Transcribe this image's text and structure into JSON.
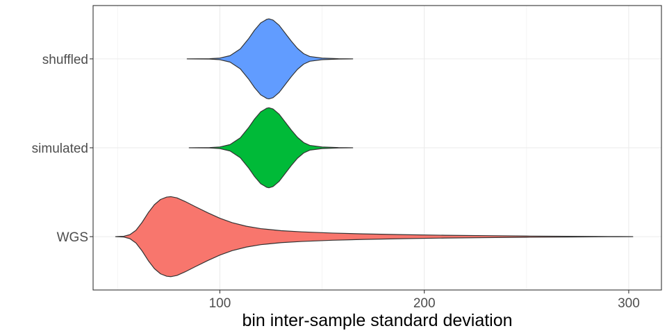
{
  "chart_data": {
    "type": "violin",
    "title": "",
    "xlabel": "bin inter-sample standard deviation",
    "ylabel": "",
    "xlim": [
      38,
      316
    ],
    "x_ticks": [
      100,
      200,
      300
    ],
    "x_minor_ticks": [
      50,
      150,
      250
    ],
    "grid": true,
    "legend": "none",
    "categories": [
      "WGS",
      "simulated",
      "shuffled"
    ],
    "series": [
      {
        "category": "WGS",
        "color": "#F8766D",
        "profile": [
          [
            49,
            0.0
          ],
          [
            53,
            0.01
          ],
          [
            56,
            0.05
          ],
          [
            59,
            0.16
          ],
          [
            62,
            0.36
          ],
          [
            65,
            0.6
          ],
          [
            68,
            0.8
          ],
          [
            71,
            0.93
          ],
          [
            74,
            0.99
          ],
          [
            76,
            1.0
          ],
          [
            79,
            0.97
          ],
          [
            83,
            0.88
          ],
          [
            88,
            0.75
          ],
          [
            94,
            0.6
          ],
          [
            100,
            0.46
          ],
          [
            106,
            0.35
          ],
          [
            113,
            0.26
          ],
          [
            120,
            0.2
          ],
          [
            130,
            0.15
          ],
          [
            140,
            0.12
          ],
          [
            155,
            0.09
          ],
          [
            170,
            0.07
          ],
          [
            190,
            0.05
          ],
          [
            210,
            0.035
          ],
          [
            230,
            0.025
          ],
          [
            250,
            0.015
          ],
          [
            270,
            0.008
          ],
          [
            290,
            0.003
          ],
          [
            302,
            0.0
          ]
        ]
      },
      {
        "category": "simulated",
        "color": "#00BA38",
        "profile": [
          [
            85,
            0.0
          ],
          [
            95,
            0.005
          ],
          [
            100,
            0.02
          ],
          [
            105,
            0.08
          ],
          [
            110,
            0.25
          ],
          [
            114,
            0.5
          ],
          [
            117,
            0.72
          ],
          [
            120,
            0.9
          ],
          [
            123,
            0.99
          ],
          [
            124,
            1.0
          ],
          [
            126,
            0.97
          ],
          [
            129,
            0.84
          ],
          [
            132,
            0.64
          ],
          [
            135,
            0.44
          ],
          [
            138,
            0.26
          ],
          [
            141,
            0.13
          ],
          [
            144,
            0.06
          ],
          [
            150,
            0.02
          ],
          [
            158,
            0.005
          ],
          [
            165,
            0.0
          ]
        ]
      },
      {
        "category": "shuffled",
        "color": "#619CFF",
        "profile": [
          [
            84,
            0.0
          ],
          [
            95,
            0.005
          ],
          [
            100,
            0.02
          ],
          [
            105,
            0.08
          ],
          [
            110,
            0.25
          ],
          [
            114,
            0.5
          ],
          [
            117,
            0.72
          ],
          [
            120,
            0.9
          ],
          [
            123,
            0.99
          ],
          [
            124,
            1.0
          ],
          [
            126,
            0.97
          ],
          [
            129,
            0.84
          ],
          [
            132,
            0.64
          ],
          [
            135,
            0.44
          ],
          [
            138,
            0.26
          ],
          [
            141,
            0.13
          ],
          [
            144,
            0.06
          ],
          [
            150,
            0.02
          ],
          [
            158,
            0.005
          ],
          [
            165,
            0.0
          ]
        ]
      }
    ]
  }
}
